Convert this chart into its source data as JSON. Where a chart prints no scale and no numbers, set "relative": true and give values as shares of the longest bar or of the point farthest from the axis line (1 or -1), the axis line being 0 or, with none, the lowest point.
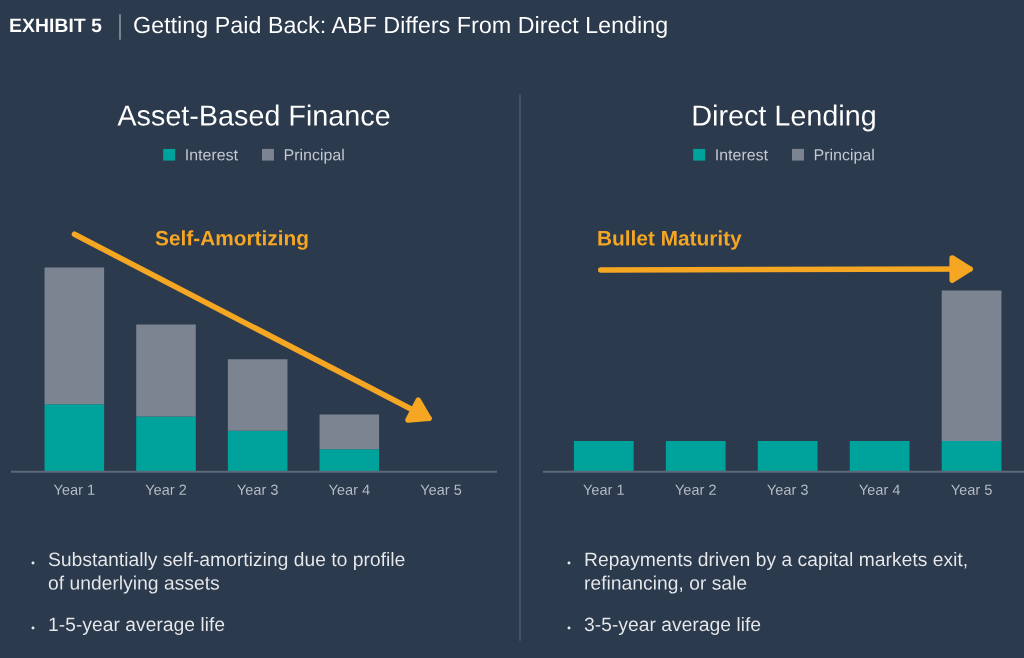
{
  "chart_data": [
    {
      "type": "bar",
      "title": "Asset-Based Finance",
      "categories": [
        "Year 1",
        "Year 2",
        "Year 3",
        "Year 4",
        "Year 5"
      ],
      "series": [
        {
          "name": "Interest",
          "color": "#00a39b",
          "values": [
            0.33,
            0.27,
            0.2,
            0.11,
            null
          ]
        },
        {
          "name": "Principal",
          "color": "#7c8391",
          "values": [
            0.67,
            0.45,
            0.35,
            0.17,
            null
          ]
        }
      ],
      "stacked": true,
      "relative": true,
      "legend": "top",
      "tick_labels": "x",
      "annotations": [
        "EXHIBIT 5",
        "Getting Paid Back: ABF Differs From Direct Lending",
        "Self-Amortizing",
        "Substantially self-amortizing due to profile\nof underlying assets",
        "1-5-year average life"
      ]
    },
    {
      "type": "bar",
      "title": "Direct Lending",
      "categories": [
        "Year 1",
        "Year 2",
        "Year 3",
        "Year 4",
        "Year 5"
      ],
      "series": [
        {
          "name": "Interest",
          "color": "#00a39b",
          "values": [
            0.17,
            0.17,
            0.17,
            0.17,
            0.17
          ]
        },
        {
          "name": "Principal",
          "color": "#7c8391",
          "values": [
            null,
            null,
            null,
            null,
            0.83
          ]
        }
      ],
      "stacked": true,
      "relative": true,
      "legend": "top",
      "tick_labels": "x",
      "annotations": [
        "Bullet Maturity",
        "Repayments driven by a capital markets exit,\nrefinancing, or sale",
        "3-5-year average life"
      ]
    }
  ]
}
